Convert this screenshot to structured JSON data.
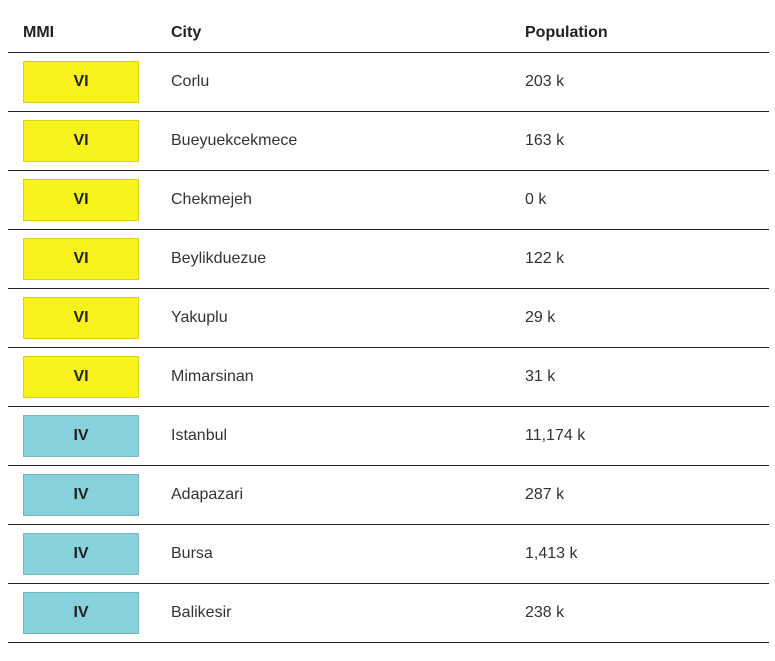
{
  "columns": {
    "mmi": "MMI",
    "city": "City",
    "population": "Population"
  },
  "colors": {
    "VI": "#f7f21c",
    "IV": "#87d1dc"
  },
  "rows": [
    {
      "mmi": "VI",
      "city": "Corlu",
      "population": "203 k"
    },
    {
      "mmi": "VI",
      "city": "Bueyuekcekmece",
      "population": "163 k"
    },
    {
      "mmi": "VI",
      "city": "Chekmejeh",
      "population": "0 k"
    },
    {
      "mmi": "VI",
      "city": "Beylikduezue",
      "population": "122 k"
    },
    {
      "mmi": "VI",
      "city": "Yakuplu",
      "population": "29 k"
    },
    {
      "mmi": "VI",
      "city": "Mimarsinan",
      "population": "31 k"
    },
    {
      "mmi": "IV",
      "city": "Istanbul",
      "population": "11,174 k"
    },
    {
      "mmi": "IV",
      "city": "Adapazari",
      "population": "287 k"
    },
    {
      "mmi": "IV",
      "city": "Bursa",
      "population": "1,413 k"
    },
    {
      "mmi": "IV",
      "city": "Balikesir",
      "population": "238 k"
    }
  ]
}
